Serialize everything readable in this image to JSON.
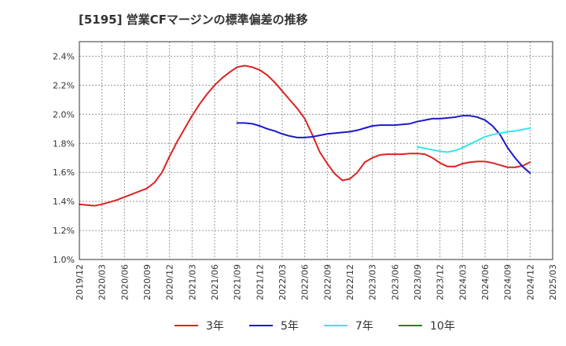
{
  "chart_data": {
    "type": "line",
    "title": "[5195]  営業CFマージンの標準偏差の推移",
    "xlabel": "",
    "ylabel": "",
    "y_ticks": [
      "1.0%",
      "1.2%",
      "1.4%",
      "1.6%",
      "1.8%",
      "2.0%",
      "2.2%",
      "2.4%"
    ],
    "ylim": [
      1.0,
      2.5
    ],
    "x_ticks": [
      "2019/12",
      "2020/03",
      "2020/06",
      "2020/09",
      "2020/12",
      "2021/03",
      "2021/06",
      "2021/09",
      "2021/12",
      "2022/03",
      "2022/06",
      "2022/09",
      "2022/12",
      "2023/03",
      "2023/06",
      "2023/09",
      "2023/12",
      "2024/03",
      "2024/06",
      "2024/09",
      "2024/12",
      "2025/03"
    ],
    "xlim": [
      "2019/12",
      "2025/03"
    ],
    "grid": true,
    "legend_position": "bottom",
    "series": [
      {
        "name": "3年",
        "color": "#dd2222",
        "points": [
          [
            "2019/12",
            1.38
          ],
          [
            "2020/01",
            1.375
          ],
          [
            "2020/02",
            1.37
          ],
          [
            "2020/03",
            1.38
          ],
          [
            "2020/04",
            1.395
          ],
          [
            "2020/05",
            1.41
          ],
          [
            "2020/06",
            1.43
          ],
          [
            "2020/07",
            1.45
          ],
          [
            "2020/08",
            1.47
          ],
          [
            "2020/09",
            1.49
          ],
          [
            "2020/10",
            1.53
          ],
          [
            "2020/11",
            1.6
          ],
          [
            "2020/12",
            1.71
          ],
          [
            "2021/01",
            1.81
          ],
          [
            "2021/02",
            1.9
          ],
          [
            "2021/03",
            1.99
          ],
          [
            "2021/04",
            2.07
          ],
          [
            "2021/05",
            2.14
          ],
          [
            "2021/06",
            2.2
          ],
          [
            "2021/07",
            2.25
          ],
          [
            "2021/08",
            2.29
          ],
          [
            "2021/09",
            2.325
          ],
          [
            "2021/10",
            2.335
          ],
          [
            "2021/11",
            2.325
          ],
          [
            "2021/12",
            2.305
          ],
          [
            "2022/01",
            2.27
          ],
          [
            "2022/02",
            2.22
          ],
          [
            "2022/03",
            2.16
          ],
          [
            "2022/04",
            2.1
          ],
          [
            "2022/05",
            2.04
          ],
          [
            "2022/06",
            1.97
          ],
          [
            "2022/07",
            1.86
          ],
          [
            "2022/08",
            1.74
          ],
          [
            "2022/09",
            1.66
          ],
          [
            "2022/10",
            1.59
          ],
          [
            "2022/11",
            1.545
          ],
          [
            "2022/12",
            1.555
          ],
          [
            "2023/01",
            1.6
          ],
          [
            "2023/02",
            1.67
          ],
          [
            "2023/03",
            1.7
          ],
          [
            "2023/04",
            1.72
          ],
          [
            "2023/05",
            1.725
          ],
          [
            "2023/06",
            1.725
          ],
          [
            "2023/07",
            1.725
          ],
          [
            "2023/08",
            1.73
          ],
          [
            "2023/09",
            1.73
          ],
          [
            "2023/10",
            1.725
          ],
          [
            "2023/11",
            1.7
          ],
          [
            "2023/12",
            1.665
          ],
          [
            "2024/01",
            1.64
          ],
          [
            "2024/02",
            1.64
          ],
          [
            "2024/03",
            1.66
          ],
          [
            "2024/04",
            1.67
          ],
          [
            "2024/05",
            1.675
          ],
          [
            "2024/06",
            1.675
          ],
          [
            "2024/07",
            1.665
          ],
          [
            "2024/08",
            1.65
          ],
          [
            "2024/09",
            1.635
          ],
          [
            "2024/10",
            1.635
          ],
          [
            "2024/11",
            1.645
          ],
          [
            "2024/12",
            1.67
          ]
        ]
      },
      {
        "name": "5年",
        "color": "#1a1acc",
        "points": [
          [
            "2021/09",
            1.94
          ],
          [
            "2021/10",
            1.94
          ],
          [
            "2021/11",
            1.935
          ],
          [
            "2021/12",
            1.92
          ],
          [
            "2022/01",
            1.9
          ],
          [
            "2022/02",
            1.885
          ],
          [
            "2022/03",
            1.865
          ],
          [
            "2022/04",
            1.85
          ],
          [
            "2022/05",
            1.84
          ],
          [
            "2022/06",
            1.84
          ],
          [
            "2022/07",
            1.845
          ],
          [
            "2022/08",
            1.855
          ],
          [
            "2022/09",
            1.865
          ],
          [
            "2022/10",
            1.87
          ],
          [
            "2022/11",
            1.875
          ],
          [
            "2022/12",
            1.88
          ],
          [
            "2023/01",
            1.89
          ],
          [
            "2023/02",
            1.905
          ],
          [
            "2023/03",
            1.92
          ],
          [
            "2023/04",
            1.925
          ],
          [
            "2023/05",
            1.925
          ],
          [
            "2023/06",
            1.925
          ],
          [
            "2023/07",
            1.93
          ],
          [
            "2023/08",
            1.935
          ],
          [
            "2023/09",
            1.95
          ],
          [
            "2023/10",
            1.96
          ],
          [
            "2023/11",
            1.97
          ],
          [
            "2023/12",
            1.97
          ],
          [
            "2024/01",
            1.975
          ],
          [
            "2024/02",
            1.98
          ],
          [
            "2024/03",
            1.99
          ],
          [
            "2024/04",
            1.99
          ],
          [
            "2024/05",
            1.98
          ],
          [
            "2024/06",
            1.96
          ],
          [
            "2024/07",
            1.92
          ],
          [
            "2024/08",
            1.86
          ],
          [
            "2024/09",
            1.77
          ],
          [
            "2024/10",
            1.7
          ],
          [
            "2024/11",
            1.64
          ],
          [
            "2024/12",
            1.595
          ]
        ]
      },
      {
        "name": "7年",
        "color": "#33e5ee",
        "points": [
          [
            "2023/09",
            1.775
          ],
          [
            "2023/10",
            1.765
          ],
          [
            "2023/11",
            1.755
          ],
          [
            "2023/12",
            1.745
          ],
          [
            "2024/01",
            1.74
          ],
          [
            "2024/02",
            1.75
          ],
          [
            "2024/03",
            1.77
          ],
          [
            "2024/04",
            1.795
          ],
          [
            "2024/05",
            1.82
          ],
          [
            "2024/06",
            1.845
          ],
          [
            "2024/07",
            1.86
          ],
          [
            "2024/08",
            1.87
          ],
          [
            "2024/09",
            1.88
          ],
          [
            "2024/10",
            1.885
          ],
          [
            "2024/11",
            1.895
          ],
          [
            "2024/12",
            1.905
          ]
        ]
      },
      {
        "name": "10年",
        "color": "#228822",
        "points": []
      }
    ]
  }
}
